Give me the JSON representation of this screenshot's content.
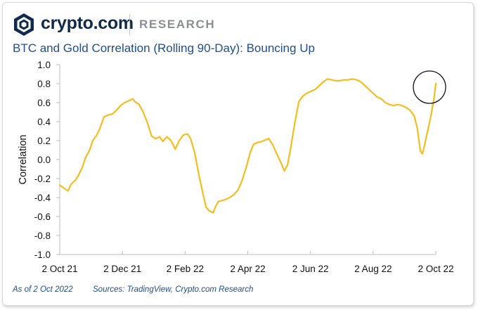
{
  "header": {
    "brand": "crypto.com",
    "section": "RESEARCH",
    "logo_icon": "crypto-com-shield-icon"
  },
  "footer": {
    "as_of": "As of 2 Oct 2022",
    "sources": "Sources: TradingView, Crypto.com Research"
  },
  "colors": {
    "series": "#f5bd1f",
    "title": "#1f4e8c",
    "brand": "#102a4c"
  },
  "chart_data": {
    "type": "line",
    "title": "BTC and Gold Correlation (Rolling 90-Day): Bouncing Up",
    "xlabel": "",
    "ylabel": "Correlation",
    "ylim": [
      -1.0,
      1.0
    ],
    "yticks": [
      "1.0",
      "0.8",
      "0.6",
      "0.4",
      "0.2",
      "0.0",
      "-0.2",
      "-0.4",
      "-0.6",
      "-0.8",
      "-1.0"
    ],
    "xticks": [
      "2 Oct 21",
      "2 Dec 21",
      "2 Feb 22",
      "2 Apr 22",
      "2 Jun 22",
      "2 Aug 22",
      "2 Oct 22"
    ],
    "xlim": [
      "2021-10-02",
      "2022-10-02"
    ],
    "grid": false,
    "annotation": "circle around latest value",
    "series": [
      {
        "points": [
          [
            "2021-10-02",
            -0.27
          ],
          [
            "2021-10-06",
            -0.3
          ],
          [
            "2021-10-10",
            -0.33
          ],
          [
            "2021-10-13",
            -0.26
          ],
          [
            "2021-10-17",
            -0.22
          ],
          [
            "2021-10-20",
            -0.17
          ],
          [
            "2021-10-24",
            -0.08
          ],
          [
            "2021-10-27",
            0.02
          ],
          [
            "2021-10-31",
            0.1
          ],
          [
            "2021-11-03",
            0.2
          ],
          [
            "2021-11-07",
            0.26
          ],
          [
            "2021-11-10",
            0.33
          ],
          [
            "2021-11-14",
            0.45
          ],
          [
            "2021-11-18",
            0.47
          ],
          [
            "2021-11-22",
            0.48
          ],
          [
            "2021-11-26",
            0.52
          ],
          [
            "2021-11-30",
            0.57
          ],
          [
            "2021-12-04",
            0.6
          ],
          [
            "2021-12-08",
            0.62
          ],
          [
            "2021-12-12",
            0.64
          ],
          [
            "2021-12-14",
            0.61
          ],
          [
            "2021-12-18",
            0.58
          ],
          [
            "2021-12-22",
            0.5
          ],
          [
            "2021-12-26",
            0.39
          ],
          [
            "2021-12-30",
            0.25
          ],
          [
            "2022-01-03",
            0.22
          ],
          [
            "2022-01-07",
            0.24
          ],
          [
            "2022-01-10",
            0.19
          ],
          [
            "2022-01-14",
            0.24
          ],
          [
            "2022-01-18",
            0.2
          ],
          [
            "2022-01-22",
            0.11
          ],
          [
            "2022-01-26",
            0.2
          ],
          [
            "2022-01-30",
            0.26
          ],
          [
            "2022-02-03",
            0.27
          ],
          [
            "2022-02-06",
            0.22
          ],
          [
            "2022-02-10",
            0.07
          ],
          [
            "2022-02-14",
            -0.16
          ],
          [
            "2022-02-18",
            -0.36
          ],
          [
            "2022-02-21",
            -0.5
          ],
          [
            "2022-02-24",
            -0.54
          ],
          [
            "2022-02-28",
            -0.56
          ],
          [
            "2022-03-02",
            -0.5
          ],
          [
            "2022-03-05",
            -0.44
          ],
          [
            "2022-03-09",
            -0.43
          ],
          [
            "2022-03-12",
            -0.42
          ],
          [
            "2022-03-16",
            -0.4
          ],
          [
            "2022-03-20",
            -0.37
          ],
          [
            "2022-03-24",
            -0.32
          ],
          [
            "2022-03-28",
            -0.22
          ],
          [
            "2022-04-01",
            -0.08
          ],
          [
            "2022-04-05",
            0.08
          ],
          [
            "2022-04-08",
            0.16
          ],
          [
            "2022-04-12",
            0.18
          ],
          [
            "2022-04-16",
            0.19
          ],
          [
            "2022-04-20",
            0.21
          ],
          [
            "2022-04-23",
            0.22
          ],
          [
            "2022-04-27",
            0.15
          ],
          [
            "2022-05-01",
            0.05
          ],
          [
            "2022-05-05",
            -0.04
          ],
          [
            "2022-05-08",
            -0.12
          ],
          [
            "2022-05-11",
            -0.06
          ],
          [
            "2022-05-14",
            0.11
          ],
          [
            "2022-05-18",
            0.38
          ],
          [
            "2022-05-22",
            0.61
          ],
          [
            "2022-05-26",
            0.67
          ],
          [
            "2022-05-30",
            0.7
          ],
          [
            "2022-06-03",
            0.72
          ],
          [
            "2022-06-07",
            0.74
          ],
          [
            "2022-06-11",
            0.78
          ],
          [
            "2022-06-15",
            0.82
          ],
          [
            "2022-06-19",
            0.85
          ],
          [
            "2022-06-23",
            0.84
          ],
          [
            "2022-06-27",
            0.83
          ],
          [
            "2022-07-01",
            0.83
          ],
          [
            "2022-07-05",
            0.84
          ],
          [
            "2022-07-09",
            0.84
          ],
          [
            "2022-07-13",
            0.85
          ],
          [
            "2022-07-17",
            0.84
          ],
          [
            "2022-07-21",
            0.82
          ],
          [
            "2022-07-25",
            0.78
          ],
          [
            "2022-07-29",
            0.74
          ],
          [
            "2022-08-02",
            0.7
          ],
          [
            "2022-08-06",
            0.66
          ],
          [
            "2022-08-10",
            0.64
          ],
          [
            "2022-08-14",
            0.6
          ],
          [
            "2022-08-18",
            0.58
          ],
          [
            "2022-08-22",
            0.57
          ],
          [
            "2022-08-26",
            0.58
          ],
          [
            "2022-08-30",
            0.57
          ],
          [
            "2022-09-03",
            0.55
          ],
          [
            "2022-09-07",
            0.52
          ],
          [
            "2022-09-11",
            0.46
          ],
          [
            "2022-09-14",
            0.33
          ],
          [
            "2022-09-17",
            0.09
          ],
          [
            "2022-09-19",
            0.06
          ],
          [
            "2022-09-21",
            0.15
          ],
          [
            "2022-09-24",
            0.3
          ],
          [
            "2022-09-27",
            0.45
          ],
          [
            "2022-09-30",
            0.63
          ],
          [
            "2022-10-02",
            0.8
          ]
        ]
      }
    ]
  }
}
